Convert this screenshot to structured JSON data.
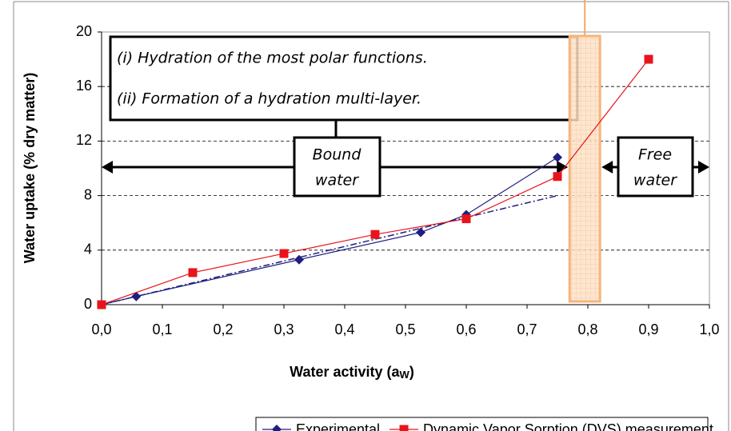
{
  "chart_data": {
    "type": "line",
    "xlabel": [
      "Water activity (a",
      "W",
      ")"
    ],
    "ylabel": "Water uptake (% dry matter)",
    "xlim": [
      0,
      1
    ],
    "ylim": [
      0,
      20
    ],
    "xticks": [
      {
        "value": 0,
        "label": "0,0"
      },
      {
        "value": 0.1,
        "label": "0,1"
      },
      {
        "value": 0.2,
        "label": "0,2"
      },
      {
        "value": 0.3,
        "label": "0,3"
      },
      {
        "value": 0.4,
        "label": "0,4"
      },
      {
        "value": 0.5,
        "label": "0,5"
      },
      {
        "value": 0.6,
        "label": "0,6"
      },
      {
        "value": 0.7,
        "label": "0,7"
      },
      {
        "value": 0.8,
        "label": "0,8"
      },
      {
        "value": 0.9,
        "label": "0,9"
      },
      {
        "value": 1,
        "label": "1,0"
      }
    ],
    "yticks": [
      0,
      4,
      8,
      12,
      16,
      20
    ],
    "grid": true,
    "legend": "bottom",
    "series": [
      {
        "name": "Experimental",
        "color": "#1f1f80",
        "marker": "diamond",
        "x": [
          0,
          0.057,
          0.325,
          0.525,
          0.6,
          0.75
        ],
        "values": [
          0,
          0.6,
          3.3,
          5.3,
          6.6,
          10.8
        ]
      },
      {
        "name": "Dynamic Vapor Sorption (DVS) measurement",
        "color": "#e8141b",
        "marker": "square",
        "x": [
          0,
          0.15,
          0.3,
          0.45,
          0.6,
          0.75,
          0.9
        ],
        "values": [
          0,
          2.35,
          3.75,
          5.15,
          6.3,
          9.4,
          18
        ]
      }
    ],
    "trendline": {
      "color": "#1f1f80",
      "x": [
        0,
        0.75
      ],
      "values": [
        0,
        8
      ]
    },
    "band": [
      0.77,
      0.82
    ],
    "annotations": {
      "hypotheses": [
        "(i) Hydration of the most polar functions.",
        "(ii) Formation of a hydration multi-layer."
      ],
      "bound": [
        "Bound",
        "water"
      ],
      "free": [
        "Free",
        "water"
      ]
    }
  }
}
